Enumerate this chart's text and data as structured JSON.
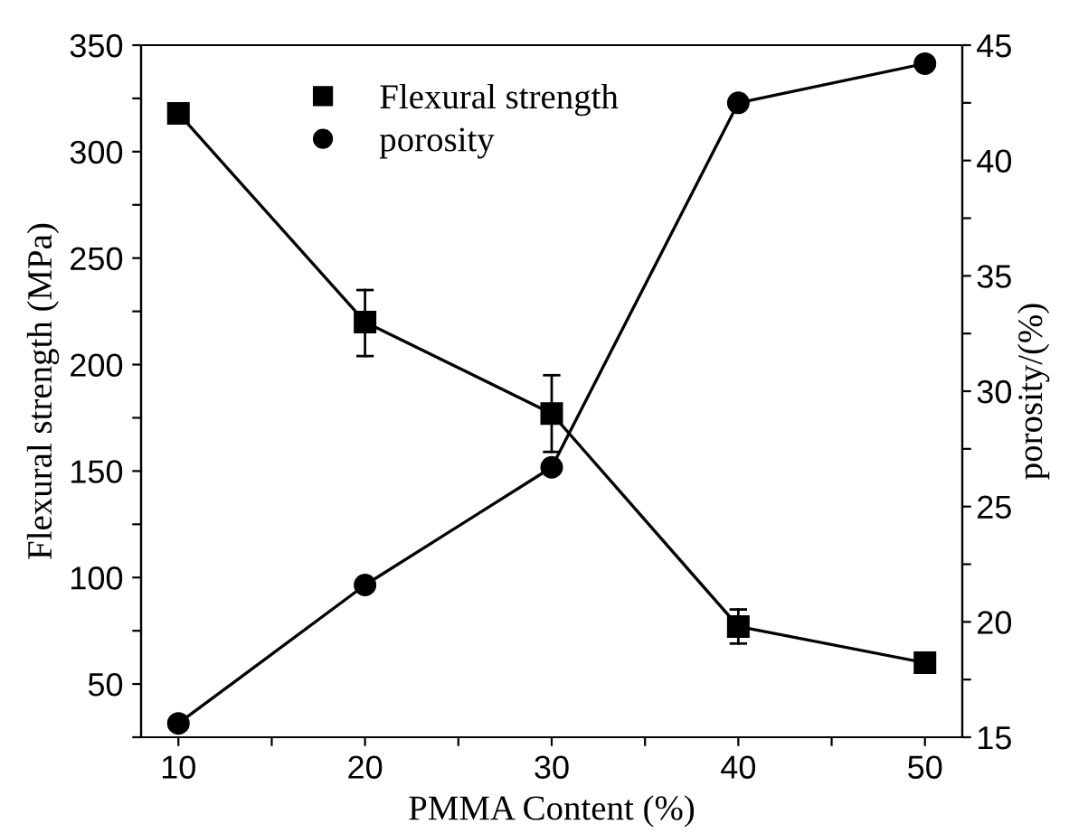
{
  "chart_data": {
    "type": "line",
    "xlabel": "PMMA Content (%)",
    "ylabel": "Flexural strength (MPa)",
    "y2label": "porosity/(%)",
    "x": [
      10,
      20,
      30,
      40,
      50
    ],
    "series": [
      {
        "name": "Flexural strength",
        "color": "#000000",
        "marker": "square",
        "values": [
          318,
          220,
          177,
          77,
          60
        ],
        "errors": [
          null,
          [
            204,
            235
          ],
          [
            159,
            195
          ],
          [
            69,
            85
          ],
          null
        ]
      },
      {
        "name": "porosity",
        "color": "#000000",
        "marker": "circle",
        "axis": "y2",
        "values": [
          15.6,
          21.6,
          26.7,
          42.5,
          44.2
        ]
      }
    ],
    "xlim": [
      8,
      52
    ],
    "xticks": [
      10,
      {
        "value": 15,
        "label": null
      },
      20,
      {
        "value": 25,
        "label": null
      },
      30,
      {
        "value": 35,
        "label": null
      },
      40,
      {
        "value": 45,
        "label": null
      },
      50
    ],
    "ylim": [
      25,
      350
    ],
    "yticks": [
      {
        "value": 25,
        "label": null
      },
      50,
      {
        "value": 75,
        "label": null
      },
      100,
      {
        "value": 125,
        "label": null
      },
      150,
      {
        "value": 175,
        "label": null
      },
      200,
      {
        "value": 225,
        "label": null
      },
      250,
      {
        "value": 275,
        "label": null
      },
      300,
      {
        "value": 325,
        "label": null
      },
      350
    ],
    "y2lim": [
      15,
      45
    ],
    "y2ticks": [
      15,
      {
        "value": 17.5,
        "label": null
      },
      20,
      {
        "value": 22.5,
        "label": null
      },
      25,
      {
        "value": 27.5,
        "label": null
      },
      30,
      {
        "value": 32.5,
        "label": null
      },
      35,
      {
        "value": 37.5,
        "label": null
      },
      40,
      {
        "value": 42.5,
        "label": null
      },
      45
    ],
    "line_style": "solid",
    "grid": false,
    "legend": "top"
  }
}
